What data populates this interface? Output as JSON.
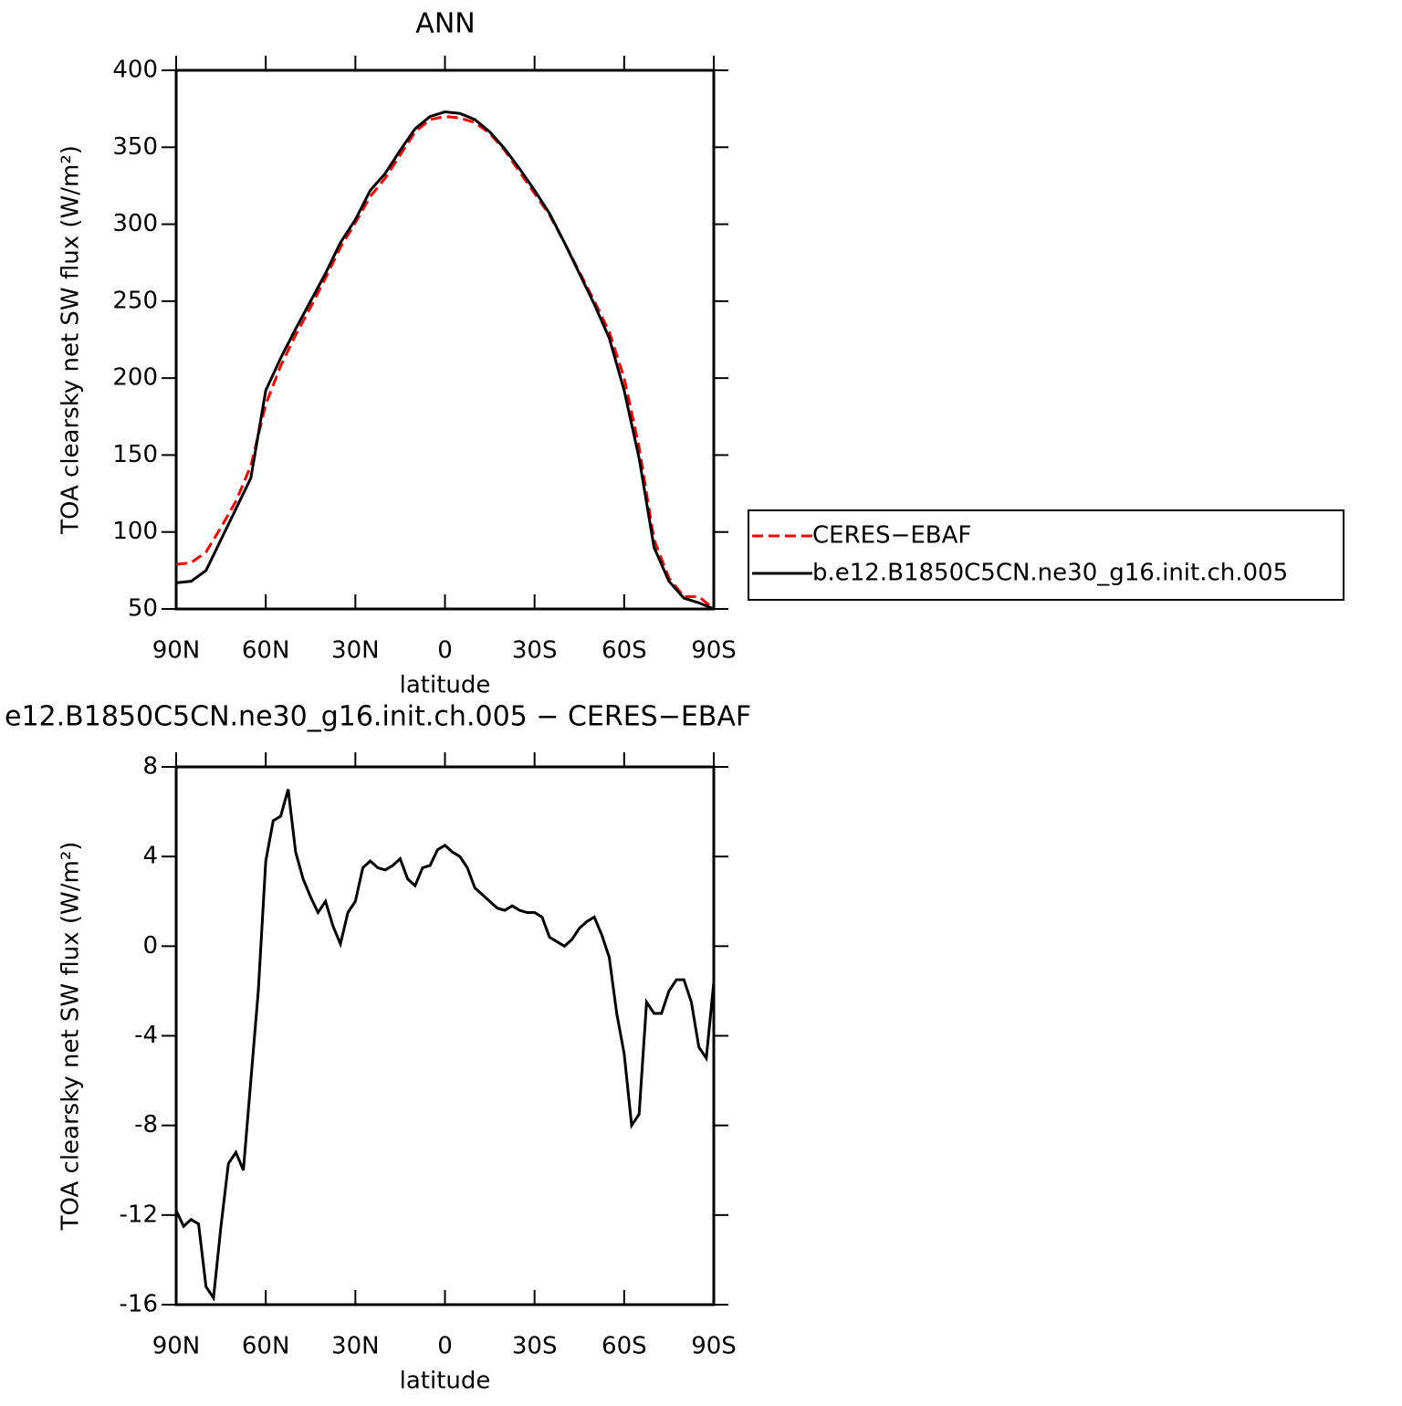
{
  "chart_data": [
    {
      "type": "line",
      "title": "ANN",
      "xlabel": "latitude",
      "ylabel": "TOA clearsky net SW flux (W/m²)",
      "x": [
        90,
        85,
        80,
        75,
        70,
        65,
        60,
        55,
        50,
        45,
        40,
        35,
        30,
        25,
        20,
        15,
        10,
        5,
        0,
        -5,
        -10,
        -15,
        -20,
        -25,
        -30,
        -35,
        -40,
        -45,
        -50,
        -55,
        -60,
        -65,
        -70,
        -75,
        -80,
        -85,
        -90
      ],
      "series": [
        {
          "name": "CERES−EBAF",
          "color": "#ff0000",
          "dash": true,
          "values": [
            79,
            80,
            87,
            103,
            120,
            143,
            183,
            208,
            228,
            246,
            265,
            285,
            301,
            318,
            330,
            345,
            360,
            368,
            370,
            369,
            366,
            359,
            348,
            334,
            320,
            306,
            288,
            269,
            250,
            230,
            200,
            155,
            95,
            70,
            58,
            58,
            50
          ]
        },
        {
          "name": "b.e12.B1850C5CN.ne30_g16.init.ch.005",
          "color": "#000000",
          "dash": false,
          "values": [
            67,
            68,
            75,
            95,
            115,
            135,
            192,
            213,
            232,
            250,
            268,
            288,
            303,
            322,
            333,
            348,
            362,
            370,
            373,
            372,
            368,
            360,
            349,
            336,
            322,
            307,
            288,
            268,
            248,
            226,
            192,
            148,
            90,
            68,
            57,
            54,
            50
          ]
        }
      ],
      "xlim": [
        90,
        -90
      ],
      "xticks": [
        {
          "value": 90,
          "label": "90N"
        },
        {
          "value": 60,
          "label": "60N"
        },
        {
          "value": 30,
          "label": "30N"
        },
        0,
        {
          "value": -30,
          "label": "30S"
        },
        {
          "value": -60,
          "label": "60S"
        },
        {
          "value": -90,
          "label": "90S"
        }
      ],
      "ylim": [
        50,
        400
      ],
      "yticks": [
        50,
        100,
        150,
        200,
        250,
        300,
        350,
        400
      ],
      "legend": "right"
    },
    {
      "type": "line",
      "title": "e12.B1850C5CN.ne30_g16.init.ch.005 − CERES−EBAF",
      "xlabel": "latitude",
      "ylabel": "TOA clearsky net SW flux (W/m²)",
      "x": [
        90,
        87.5,
        85,
        82.5,
        80,
        77.5,
        75,
        72.5,
        70,
        67.5,
        65,
        62.5,
        60,
        57.5,
        55,
        52.5,
        50,
        47.5,
        45,
        42.5,
        40,
        37.5,
        35,
        32.5,
        30,
        27.5,
        25,
        22.5,
        20,
        17.5,
        15,
        12.5,
        10,
        7.5,
        5,
        2.5,
        0,
        -2.5,
        -5,
        -7.5,
        -10,
        -12.5,
        -15,
        -17.5,
        -20,
        -22.5,
        -25,
        -27.5,
        -30,
        -32.5,
        -35,
        -37.5,
        -40,
        -42.5,
        -45,
        -47.5,
        -50,
        -52.5,
        -55,
        -57.5,
        -60,
        -62.5,
        -65,
        -67.5,
        -70,
        -72.5,
        -75,
        -77.5,
        -80,
        -82.5,
        -85,
        -87.5,
        -90
      ],
      "color": "#000000",
      "values": [
        -11.8,
        -12.5,
        -12.2,
        -12.4,
        -15.2,
        -15.7,
        -12.5,
        -9.7,
        -9.2,
        -10,
        -6,
        -2,
        3.8,
        5.6,
        5.8,
        7.0,
        4.2,
        3.0,
        2.2,
        1.5,
        2.0,
        0.9,
        0.1,
        1.5,
        2.0,
        3.5,
        3.8,
        3.5,
        3.4,
        3.6,
        3.9,
        3.0,
        2.7,
        3.5,
        3.6,
        4.3,
        4.5,
        4.2,
        4.0,
        3.5,
        2.6,
        2.3,
        2.0,
        1.7,
        1.6,
        1.8,
        1.6,
        1.5,
        1.5,
        1.3,
        0.4,
        0.2,
        0.0,
        0.3,
        0.8,
        1.1,
        1.3,
        0.5,
        -0.5,
        -3.0,
        -4.8,
        -8.0,
        -7.5,
        -2.5,
        -3.0,
        -3.0,
        -2.0,
        -1.5,
        -1.5,
        -2.5,
        -4.5,
        -5.0,
        -1.6
      ],
      "xlim": [
        90,
        -90
      ],
      "xticks": [
        {
          "value": 90,
          "label": "90N"
        },
        {
          "value": 60,
          "label": "60N"
        },
        {
          "value": 30,
          "label": "30N"
        },
        0,
        {
          "value": -30,
          "label": "30S"
        },
        {
          "value": -60,
          "label": "60S"
        },
        {
          "value": -90,
          "label": "90S"
        }
      ],
      "ylim": [
        -16,
        8
      ],
      "yticks": [
        -16,
        -12,
        -8,
        -4,
        0,
        4,
        8
      ]
    }
  ]
}
